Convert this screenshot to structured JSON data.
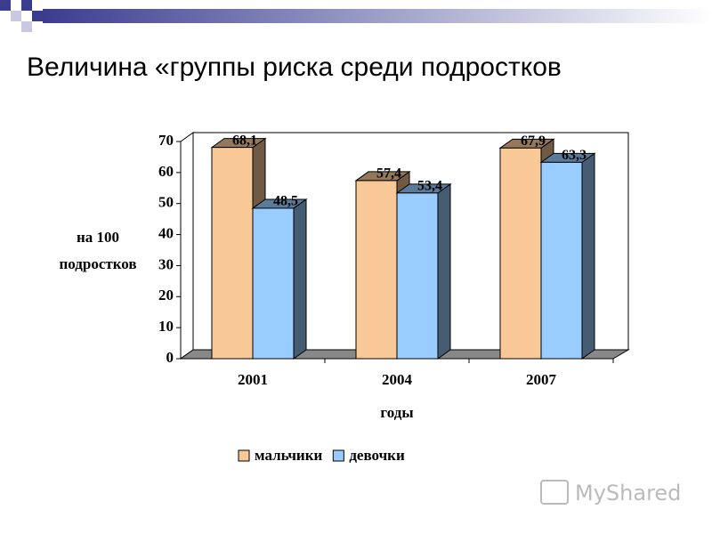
{
  "chart_data": {
    "type": "bar3d",
    "title": "Величина «группы риска среди подростков",
    "y_label": [
      "на 100",
      "подростков"
    ],
    "x_label": "годы",
    "categories": [
      "2001",
      "2004",
      "2007"
    ],
    "series": [
      {
        "name": "мальчики",
        "color": "#f9c897",
        "values": [
          68.1,
          57.4,
          67.9
        ],
        "value_labels": [
          "68,1",
          "57,4",
          "67,9"
        ]
      },
      {
        "name": "девочки",
        "color": "#99ccff",
        "values": [
          48.5,
          53.4,
          63.3
        ],
        "value_labels": [
          "48,5",
          "53,4",
          "63,3"
        ]
      }
    ],
    "ylim": [
      0,
      70
    ],
    "yticks": [
      0,
      10,
      20,
      30,
      40,
      50,
      60,
      70
    ],
    "grid": false,
    "legend": "bottom",
    "watermark": "MyShared"
  }
}
